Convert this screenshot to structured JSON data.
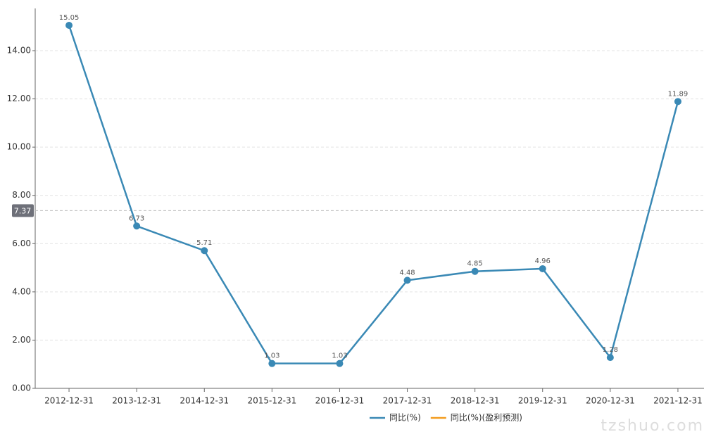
{
  "chart_data": {
    "type": "line",
    "categories": [
      "2012-12-31",
      "2013-12-31",
      "2014-12-31",
      "2015-12-31",
      "2016-12-31",
      "2017-12-31",
      "2018-12-31",
      "2019-12-31",
      "2020-12-31",
      "2021-12-31"
    ],
    "series": [
      {
        "name": "同比(%)",
        "color": "#3a89b5",
        "values": [
          15.05,
          6.73,
          5.71,
          1.03,
          1.03,
          4.48,
          4.85,
          4.96,
          1.28,
          11.89
        ]
      },
      {
        "name": "同比(%)(盈利预测)",
        "color": "#f39c1f",
        "values": [
          null,
          null,
          null,
          null,
          null,
          null,
          null,
          null,
          null,
          null
        ]
      }
    ],
    "ylim": [
      0,
      15.75
    ],
    "yticks": [
      {
        "value": 0,
        "label": "0.00"
      },
      {
        "value": 2,
        "label": "2.00"
      },
      {
        "value": 4,
        "label": "4.00"
      },
      {
        "value": 6,
        "label": "6.00"
      },
      {
        "value": 8,
        "label": "8.00"
      },
      {
        "value": 10,
        "label": "10.00"
      },
      {
        "value": 12,
        "label": "12.00"
      },
      {
        "value": 14,
        "label": "14.00"
      }
    ],
    "grid": true,
    "axis_pointer": 7.37,
    "legend": "bottom",
    "watermark": "tzshuo.com"
  }
}
